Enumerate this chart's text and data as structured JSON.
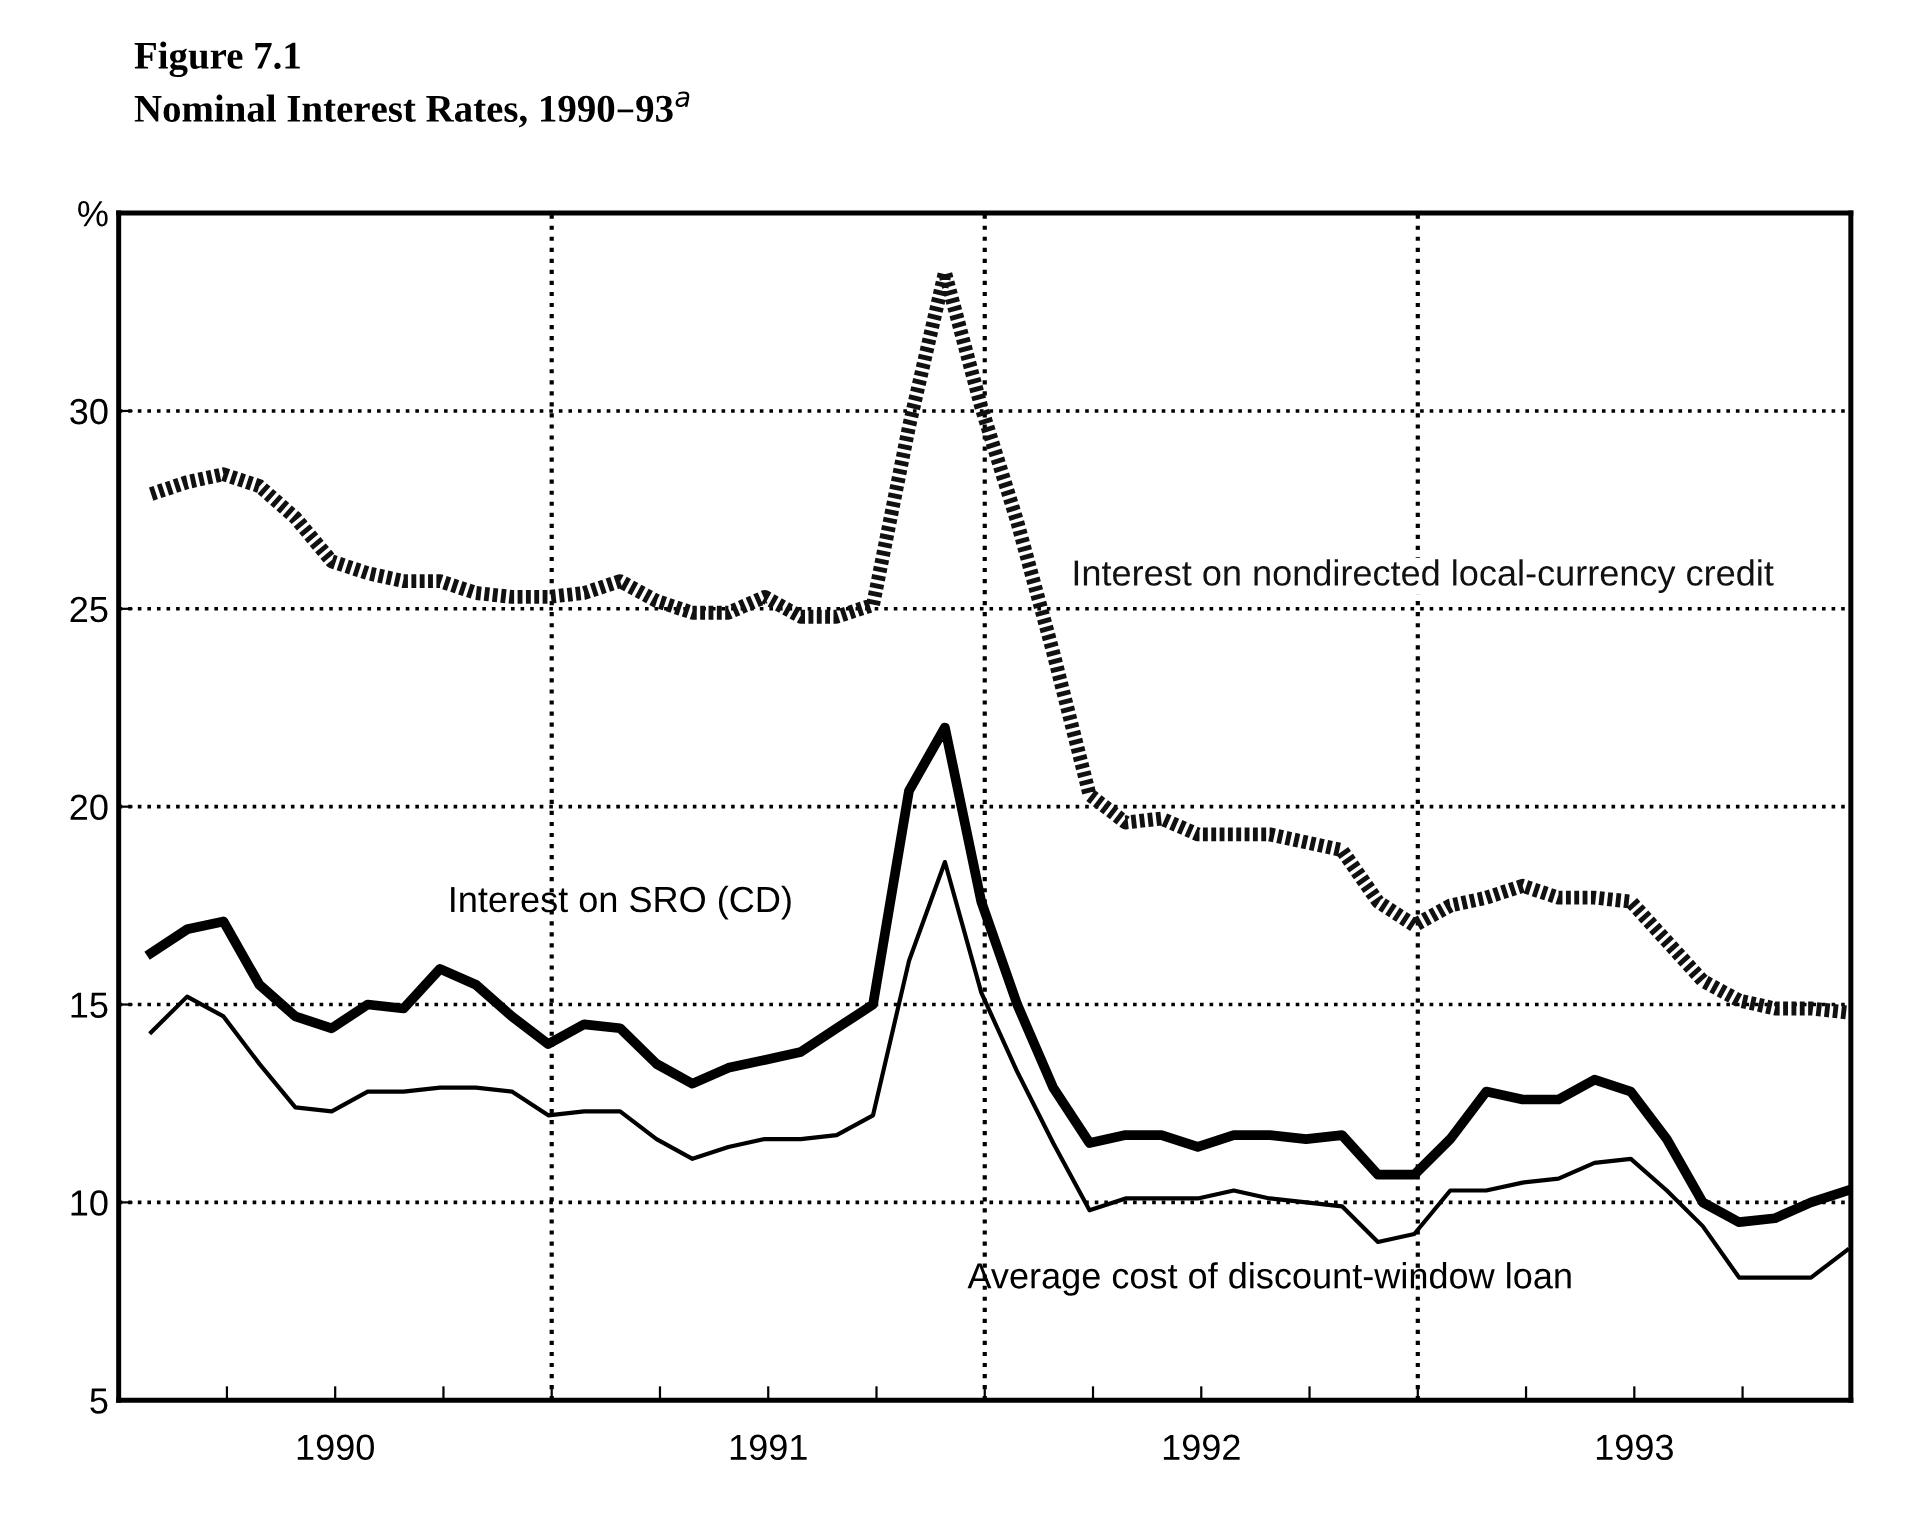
{
  "chart_data": {
    "type": "line",
    "title": "Figure 7.1",
    "subtitle": "Nominal Interest Rates, 1990–93$^{a}$",
    "x": [
      1990.075,
      1990.158,
      1990.242,
      1990.325,
      1990.408,
      1990.492,
      1990.575,
      1990.658,
      1990.742,
      1990.825,
      1990.908,
      1990.992,
      1991.075,
      1991.158,
      1991.242,
      1991.325,
      1991.408,
      1991.492,
      1991.575,
      1991.658,
      1991.742,
      1991.825,
      1991.908,
      1991.992,
      1992.075,
      1992.158,
      1992.242,
      1992.325,
      1992.408,
      1992.492,
      1992.575,
      1992.658,
      1992.742,
      1992.825,
      1992.908,
      1992.992,
      1993.075,
      1993.158,
      1993.242,
      1993.325,
      1993.408,
      1993.492,
      1993.575,
      1993.658,
      1993.742,
      1993.825,
      1993.908,
      1993.992
    ],
    "series": [
      {
        "name": "Interest on nondirected local-currency credit",
        "color": "#111111",
        "line_style": "dotted",
        "values": [
          27.9,
          28.2,
          28.4,
          28.1,
          27.3,
          26.2,
          25.9,
          25.7,
          25.7,
          25.4,
          25.3,
          25.3,
          25.4,
          25.7,
          25.2,
          24.9,
          24.9,
          25.3,
          24.8,
          24.8,
          25.1,
          29.6,
          33.5,
          30.1,
          27.2,
          23.9,
          20.3,
          19.6,
          19.7,
          19.3,
          19.3,
          19.3,
          19.1,
          18.9,
          17.6,
          17.0,
          17.5,
          17.7,
          18.0,
          17.7,
          17.7,
          17.6,
          16.6,
          15.6,
          15.1,
          14.9,
          14.9,
          14.8
        ]
      },
      {
        "name": "Interest on SRO (CD)",
        "color": "#000000",
        "line_style": "solid",
        "values": [
          16.3,
          16.9,
          17.1,
          15.5,
          14.7,
          14.4,
          15.0,
          14.9,
          15.9,
          15.5,
          14.7,
          14.0,
          14.5,
          14.4,
          13.5,
          13.0,
          13.4,
          13.6,
          13.8,
          14.4,
          15.0,
          20.4,
          22.0,
          17.6,
          15.0,
          12.9,
          11.5,
          11.7,
          11.7,
          11.4,
          11.7,
          11.7,
          11.6,
          11.7,
          10.7,
          10.7,
          11.6,
          12.8,
          12.6,
          12.6,
          13.1,
          12.8,
          11.6,
          10.0,
          9.5,
          9.6,
          10.0,
          10.3
        ]
      },
      {
        "name": "Average cost of discount-window loan",
        "color": "#000000",
        "line_style": "solid",
        "values": [
          14.3,
          15.2,
          14.7,
          13.5,
          12.4,
          12.3,
          12.8,
          12.8,
          12.9,
          12.9,
          12.8,
          12.2,
          12.3,
          12.3,
          11.6,
          11.1,
          11.4,
          11.6,
          11.6,
          11.7,
          12.2,
          16.1,
          18.6,
          15.3,
          13.3,
          11.5,
          9.8,
          10.1,
          10.1,
          10.1,
          10.3,
          10.1,
          10.0,
          9.9,
          9.0,
          9.2,
          10.3,
          10.3,
          10.5,
          10.6,
          11.0,
          11.1,
          10.3,
          9.4,
          8.1,
          8.1,
          8.1,
          8.8
        ]
      }
    ],
    "xlim": [
      1990,
      1994
    ],
    "xticks": [
      {
        "value": 1990.25,
        "label": null
      },
      {
        "value": 1990.5,
        "label": "1990"
      },
      {
        "value": 1990.75,
        "label": null
      },
      {
        "value": 1991,
        "label": null
      },
      {
        "value": 1991.25,
        "label": null
      },
      {
        "value": 1991.5,
        "label": "1991"
      },
      {
        "value": 1991.75,
        "label": null
      },
      {
        "value": 1992,
        "label": null
      },
      {
        "value": 1992.25,
        "label": null
      },
      {
        "value": 1992.5,
        "label": "1992"
      },
      {
        "value": 1992.75,
        "label": null
      },
      {
        "value": 1993,
        "label": null
      },
      {
        "value": 1993.25,
        "label": null
      },
      {
        "value": 1993.5,
        "label": "1993"
      },
      {
        "value": 1993.75,
        "label": null
      }
    ],
    "ylim": [
      5,
      35
    ],
    "yticks": [
      5,
      10,
      15,
      20,
      25,
      30,
      {
        "value": 35,
        "label": "%"
      }
    ],
    "grid": "y",
    "ref_lines": [
      {
        "axis": "x",
        "value": 1991,
        "line_style": "dotted"
      },
      {
        "axis": "x",
        "value": 1992,
        "line_style": "dotted"
      },
      {
        "axis": "x",
        "value": 1993,
        "line_style": "dotted"
      }
    ],
    "legend": false
  }
}
